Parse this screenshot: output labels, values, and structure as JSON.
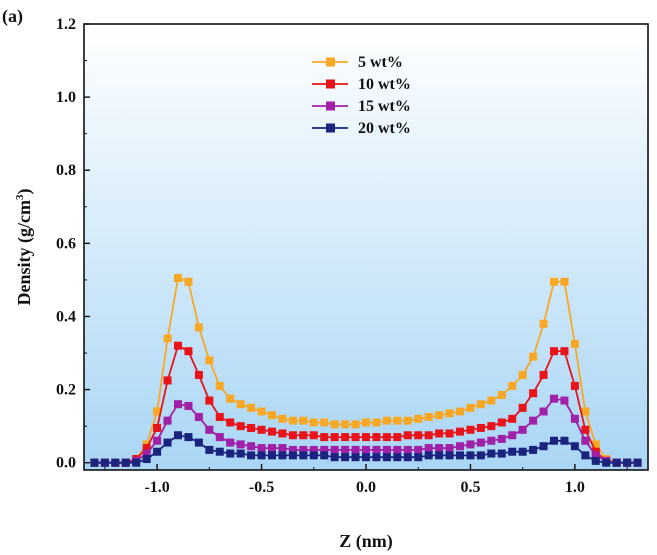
{
  "panel_label": "(a)",
  "chart_data": {
    "type": "line",
    "title": "",
    "xlabel": "Z (nm)",
    "ylabel": "Density (g/cm",
    "ylabel_sup": "3",
    "ylabel_close": ")",
    "xlim": [
      -1.35,
      1.35
    ],
    "ylim": [
      -0.02,
      1.2
    ],
    "xticks": [
      -1.0,
      -0.5,
      0.0,
      0.5,
      1.0
    ],
    "xtick_labels": [
      "-1.0",
      "-0.5",
      "0.0",
      "0.5",
      "1.0"
    ],
    "yticks": [
      0.0,
      0.2,
      0.4,
      0.6,
      0.8,
      1.0,
      1.2
    ],
    "ytick_labels": [
      "0.0",
      "0.2",
      "0.4",
      "0.6",
      "0.8",
      "1.0",
      "1.2"
    ],
    "grid": false,
    "legend_position": "top-center",
    "background": {
      "top_color": "#ffffff",
      "bottom_color": "#a9d6f5"
    },
    "x": [
      -1.3,
      -1.25,
      -1.2,
      -1.15,
      -1.1,
      -1.05,
      -1.0,
      -0.95,
      -0.9,
      -0.85,
      -0.8,
      -0.75,
      -0.7,
      -0.65,
      -0.6,
      -0.55,
      -0.5,
      -0.45,
      -0.4,
      -0.35,
      -0.3,
      -0.25,
      -0.2,
      -0.15,
      -0.1,
      -0.05,
      0.0,
      0.05,
      0.1,
      0.15,
      0.2,
      0.25,
      0.3,
      0.35,
      0.4,
      0.45,
      0.5,
      0.55,
      0.6,
      0.65,
      0.7,
      0.75,
      0.8,
      0.85,
      0.9,
      0.95,
      1.0,
      1.05,
      1.1,
      1.15,
      1.2,
      1.25,
      1.3
    ],
    "series": [
      {
        "name": "5 wt%",
        "color": "#f9a825",
        "values": [
          0.0,
          0.0,
          0.0,
          0.0,
          0.01,
          0.05,
          0.14,
          0.34,
          0.505,
          0.495,
          0.37,
          0.28,
          0.21,
          0.175,
          0.16,
          0.15,
          0.14,
          0.13,
          0.12,
          0.115,
          0.115,
          0.11,
          0.11,
          0.105,
          0.105,
          0.105,
          0.11,
          0.11,
          0.115,
          0.115,
          0.115,
          0.12,
          0.125,
          0.13,
          0.135,
          0.14,
          0.15,
          0.16,
          0.17,
          0.185,
          0.21,
          0.24,
          0.29,
          0.38,
          0.495,
          0.495,
          0.325,
          0.14,
          0.05,
          0.01,
          0.0,
          0.0,
          0.0
        ]
      },
      {
        "name": "10 wt%",
        "color": "#e8141a",
        "values": [
          0.0,
          0.0,
          0.0,
          0.0,
          0.01,
          0.04,
          0.095,
          0.225,
          0.32,
          0.305,
          0.24,
          0.17,
          0.125,
          0.11,
          0.1,
          0.095,
          0.09,
          0.085,
          0.08,
          0.075,
          0.075,
          0.075,
          0.07,
          0.07,
          0.07,
          0.07,
          0.07,
          0.07,
          0.07,
          0.07,
          0.075,
          0.075,
          0.075,
          0.08,
          0.08,
          0.085,
          0.09,
          0.095,
          0.1,
          0.11,
          0.12,
          0.15,
          0.19,
          0.24,
          0.305,
          0.305,
          0.21,
          0.09,
          0.03,
          0.005,
          0.0,
          0.0,
          0.0
        ]
      },
      {
        "name": "15 wt%",
        "color": "#a020a8",
        "values": [
          0.0,
          0.0,
          0.0,
          0.0,
          0.005,
          0.025,
          0.06,
          0.115,
          0.16,
          0.155,
          0.125,
          0.09,
          0.07,
          0.055,
          0.05,
          0.045,
          0.04,
          0.04,
          0.04,
          0.035,
          0.035,
          0.035,
          0.035,
          0.035,
          0.035,
          0.035,
          0.035,
          0.035,
          0.035,
          0.035,
          0.035,
          0.035,
          0.04,
          0.04,
          0.04,
          0.045,
          0.05,
          0.055,
          0.06,
          0.065,
          0.075,
          0.09,
          0.115,
          0.14,
          0.175,
          0.17,
          0.12,
          0.06,
          0.02,
          0.005,
          0.0,
          0.0,
          0.0
        ]
      },
      {
        "name": "20 wt%",
        "color": "#1a237e",
        "values": [
          0.0,
          0.0,
          0.0,
          0.0,
          0.0,
          0.01,
          0.03,
          0.055,
          0.075,
          0.07,
          0.055,
          0.035,
          0.03,
          0.025,
          0.025,
          0.02,
          0.02,
          0.02,
          0.02,
          0.02,
          0.02,
          0.02,
          0.02,
          0.015,
          0.015,
          0.015,
          0.015,
          0.015,
          0.015,
          0.015,
          0.015,
          0.015,
          0.02,
          0.02,
          0.02,
          0.02,
          0.02,
          0.02,
          0.025,
          0.025,
          0.03,
          0.03,
          0.035,
          0.045,
          0.06,
          0.06,
          0.045,
          0.02,
          0.005,
          0.0,
          0.0,
          0.0,
          0.0
        ]
      }
    ]
  }
}
